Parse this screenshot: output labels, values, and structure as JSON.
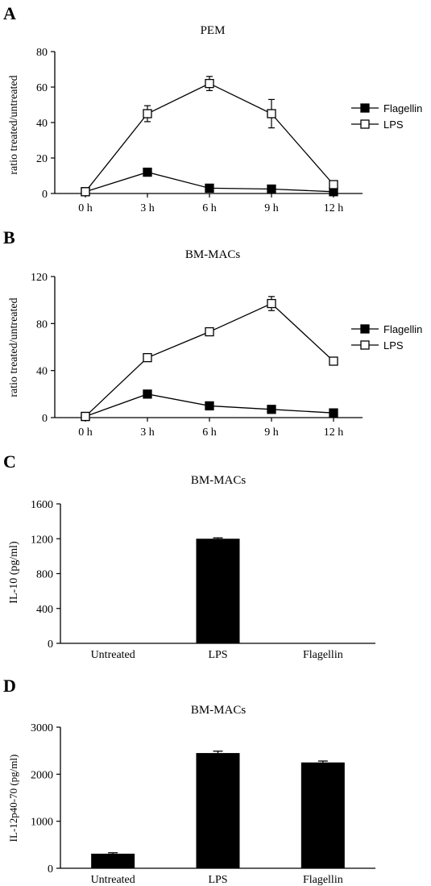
{
  "chart_data": [
    {
      "panel": "A",
      "type": "line",
      "title": "PEM",
      "xlabel": "",
      "ylabel": "ratio treated/untreated",
      "categories": [
        "0 h",
        "3 h",
        "6 h",
        "9 h",
        "12 h"
      ],
      "ylim": [
        0,
        80
      ],
      "yticks": [
        "0",
        "20",
        "40",
        "60",
        "80"
      ],
      "legend_position": "right",
      "series": [
        {
          "name": "Flagellin",
          "marker": "filled-square",
          "values": [
            1,
            12,
            3,
            2.5,
            1
          ],
          "errors": [
            0.3,
            1.2,
            0.6,
            0.5,
            0.3
          ]
        },
        {
          "name": "LPS",
          "marker": "open-square",
          "values": [
            1,
            45,
            62,
            45,
            5
          ],
          "errors": [
            0.3,
            4.5,
            4,
            8,
            1
          ]
        }
      ]
    },
    {
      "panel": "B",
      "type": "line",
      "title": "BM-MACs",
      "xlabel": "",
      "ylabel": "ratio treated/untreated",
      "categories": [
        "0 h",
        "3 h",
        "6 h",
        "9 h",
        "12 h"
      ],
      "ylim": [
        0,
        120
      ],
      "yticks": [
        "0",
        "40",
        "80",
        "120"
      ],
      "legend_position": "right",
      "series": [
        {
          "name": "Flagellin",
          "marker": "filled-square",
          "values": [
            1,
            20,
            10,
            7,
            4
          ],
          "errors": [
            0.3,
            1.5,
            1,
            1,
            0.5
          ]
        },
        {
          "name": "LPS",
          "marker": "open-square",
          "values": [
            1,
            51,
            73,
            97,
            48
          ],
          "errors": [
            0.3,
            2,
            1.5,
            6,
            1.5
          ]
        }
      ]
    },
    {
      "panel": "C",
      "type": "bar",
      "title": "BM-MACs",
      "xlabel": "",
      "ylabel": "IL-10 (pg/ml)",
      "categories": [
        "Untreated",
        "LPS",
        "Flagellin"
      ],
      "ylim": [
        0,
        1600
      ],
      "yticks": [
        "0",
        "400",
        "800",
        "1200",
        "1600"
      ],
      "values": [
        4,
        1200,
        4
      ],
      "errors": [
        0,
        10,
        0
      ]
    },
    {
      "panel": "D",
      "type": "bar",
      "title": "BM-MACs",
      "xlabel": "",
      "ylabel": "IL-12p40-70 (pg/ml)",
      "categories": [
        "Untreated",
        "LPS",
        "Flagellin"
      ],
      "ylim": [
        0,
        3000
      ],
      "yticks": [
        "0",
        "1000",
        "2000",
        "3000"
      ],
      "values": [
        310,
        2450,
        2250
      ],
      "errors": [
        20,
        40,
        30
      ]
    }
  ]
}
